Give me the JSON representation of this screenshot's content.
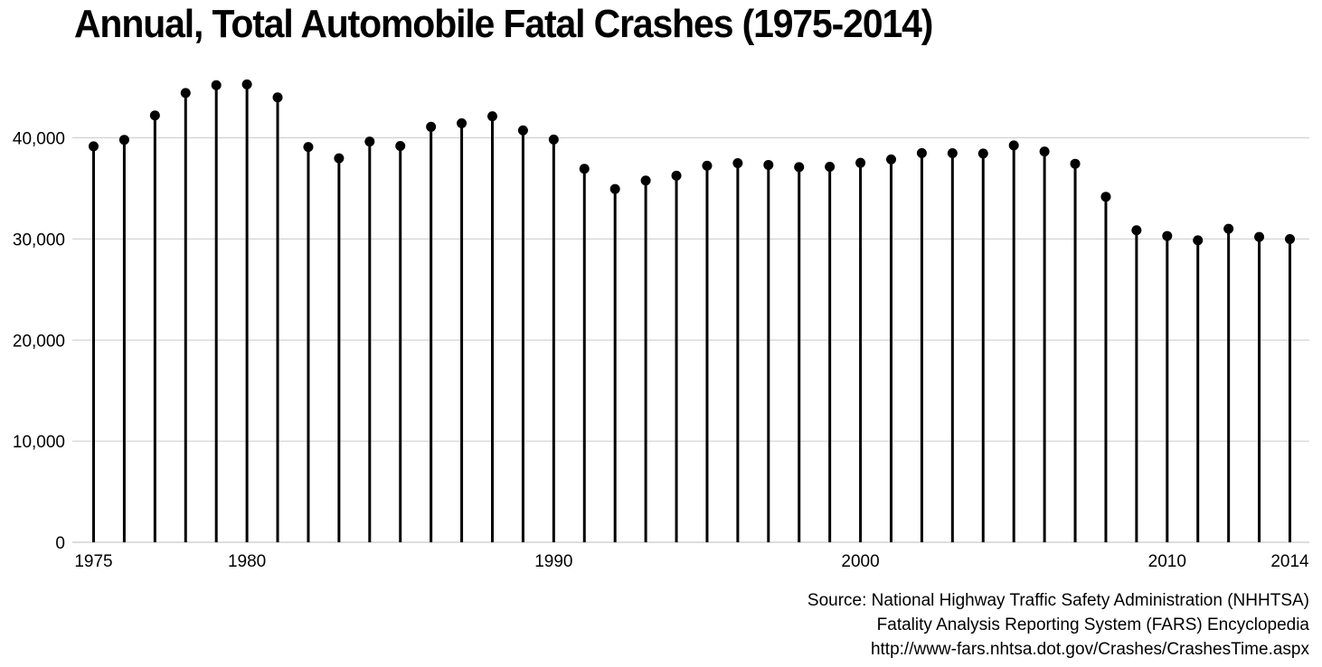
{
  "chart_data": {
    "type": "lollipop",
    "title": "Annual, Total Automobile Fatal Crashes (1975-2014)",
    "xlabel": "",
    "ylabel": "",
    "x": [
      1975,
      1976,
      1977,
      1978,
      1979,
      1980,
      1981,
      1982,
      1983,
      1984,
      1985,
      1986,
      1987,
      1988,
      1989,
      1990,
      1991,
      1992,
      1993,
      1994,
      1995,
      1996,
      1997,
      1998,
      1999,
      2000,
      2001,
      2002,
      2003,
      2004,
      2005,
      2006,
      2007,
      2008,
      2009,
      2010,
      2011,
      2012,
      2013,
      2014
    ],
    "values": [
      39161,
      39804,
      42211,
      44433,
      45208,
      45284,
      44000,
      39092,
      37976,
      39631,
      39196,
      41090,
      41438,
      42130,
      40741,
      39836,
      36937,
      34942,
      35780,
      36254,
      37241,
      37494,
      37324,
      37107,
      37140,
      37526,
      37862,
      38491,
      38477,
      38444,
      39252,
      38648,
      37435,
      34172,
      30862,
      30296,
      29867,
      31006,
      30203,
      29989
    ],
    "xlim": [
      1975,
      2014
    ],
    "ylim": [
      0,
      47000
    ],
    "yticks": [
      0,
      10000,
      20000,
      30000,
      40000
    ],
    "ytick_labels": [
      "0",
      "10,000",
      "20,000",
      "30,000",
      "40,000"
    ],
    "xticks": [
      1975,
      1980,
      1990,
      2000,
      2010,
      2014
    ],
    "xtick_labels": [
      "1975",
      "1980",
      "1990",
      "2000",
      "2010",
      "2014"
    ],
    "grid": "horizontal",
    "legend": "none",
    "colors": {
      "marker": "#000000",
      "stem": "#000000",
      "grid": "#cccccc",
      "background": "#ffffff"
    }
  },
  "source": {
    "line1": "Source: National Highway Traffic Safety Administration (NHHTSA)",
    "line2": "Fatality Analysis Reporting System (FARS) Encyclopedia",
    "line3": "http://www-fars.nhtsa.dot.gov/Crashes/CrashesTime.aspx"
  }
}
